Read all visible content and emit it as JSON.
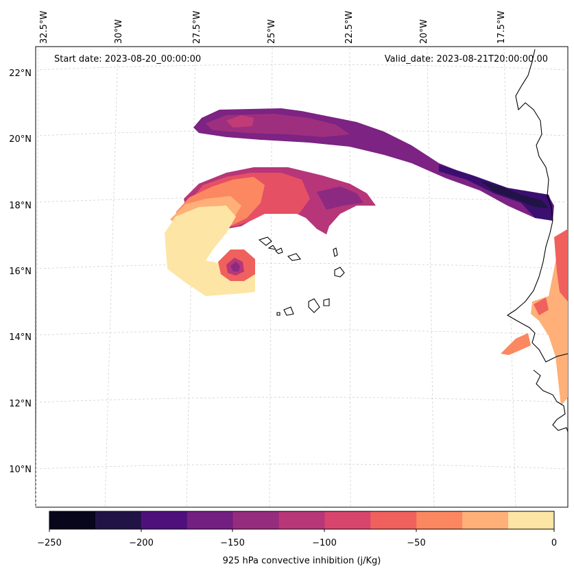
{
  "header": {
    "start_date": "Start date: 2023-08-20_00:00:00",
    "valid_date": "Valid_date: 2023-08-21T20:00:00.00"
  },
  "lon_labels": [
    "32.5°W",
    "30°W",
    "27.5°W",
    "25°W",
    "22.5°W",
    "20°W",
    "17.5°W"
  ],
  "lat_labels": [
    "22°N",
    "20°N",
    "18°N",
    "16°N",
    "14°N",
    "12°N",
    "10°N"
  ],
  "colorbar": {
    "title": "925 hPa convective inhibition (j/Kg)",
    "ticks": [
      "−250",
      "−200",
      "−150",
      "−100",
      "−50",
      "0"
    ],
    "colors": [
      "#07061b",
      "#221347",
      "#4e117b",
      "#721f81",
      "#962c7e",
      "#b73779",
      "#d8456c",
      "#f0605d",
      "#fb8761",
      "#feb078",
      "#fde5a5"
    ]
  },
  "map_style": {
    "gridlines": "dashed light gray",
    "coastline_color": "#000000",
    "colormap": "magma"
  }
}
